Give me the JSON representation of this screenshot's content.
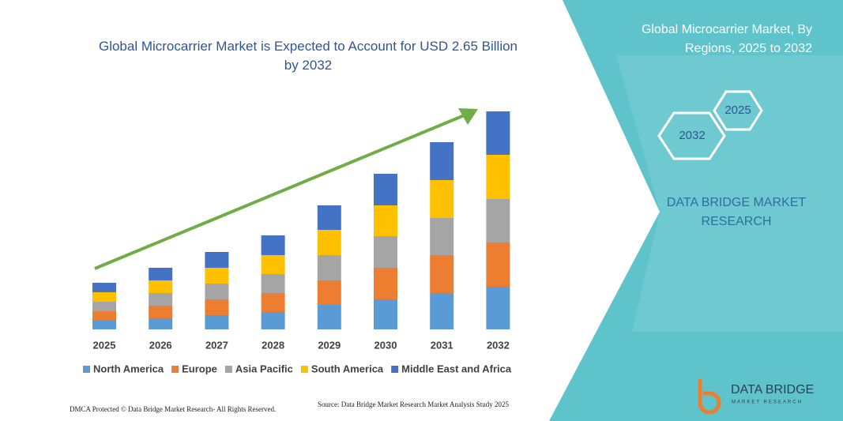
{
  "chart_data": {
    "type": "stacked-bar",
    "title": "Global Microcarrier Market is Expected to Account for USD 2.65 Billion by 2032",
    "categories": [
      "2025",
      "2026",
      "2027",
      "2028",
      "2029",
      "2030",
      "2031",
      "2032"
    ],
    "series": [
      {
        "name": "North America",
        "color": "#5b9bd5",
        "values": [
          12,
          14,
          18,
          22,
          31,
          38,
          46,
          54
        ]
      },
      {
        "name": "Europe",
        "color": "#ed7d31",
        "values": [
          11,
          16,
          20,
          24,
          31,
          40,
          48,
          56
        ]
      },
      {
        "name": "Asia Pacific",
        "color": "#a5a5a5",
        "values": [
          12,
          16,
          20,
          24,
          32,
          40,
          47,
          55
        ]
      },
      {
        "name": "South America",
        "color": "#ffc000",
        "values": [
          12,
          16,
          20,
          24,
          32,
          39,
          48,
          56
        ]
      },
      {
        "name": "Middle East and Africa",
        "color": "#4472c4",
        "values": [
          12,
          16,
          20,
          25,
          31,
          40,
          48,
          55
        ]
      }
    ],
    "legend": "bottom"
  },
  "panel": {
    "title_line1": "Global Microcarrier Market, By",
    "title_line2": "Regions, 2025 to 2032",
    "hex_end": "2032",
    "hex_start": "2025",
    "brand_line1": "DATA BRIDGE MARKET",
    "brand_line2": "RESEARCH"
  },
  "footer": {
    "dmca": "DMCA Protected © Data Bridge Market Research-  All Rights Reserved.",
    "source": "Source: Data Bridge Market Research  Market Analysis Study 2025"
  },
  "logo": {
    "name": "DATA BRIDGE",
    "tagline": "MARKET RESEARCH"
  }
}
